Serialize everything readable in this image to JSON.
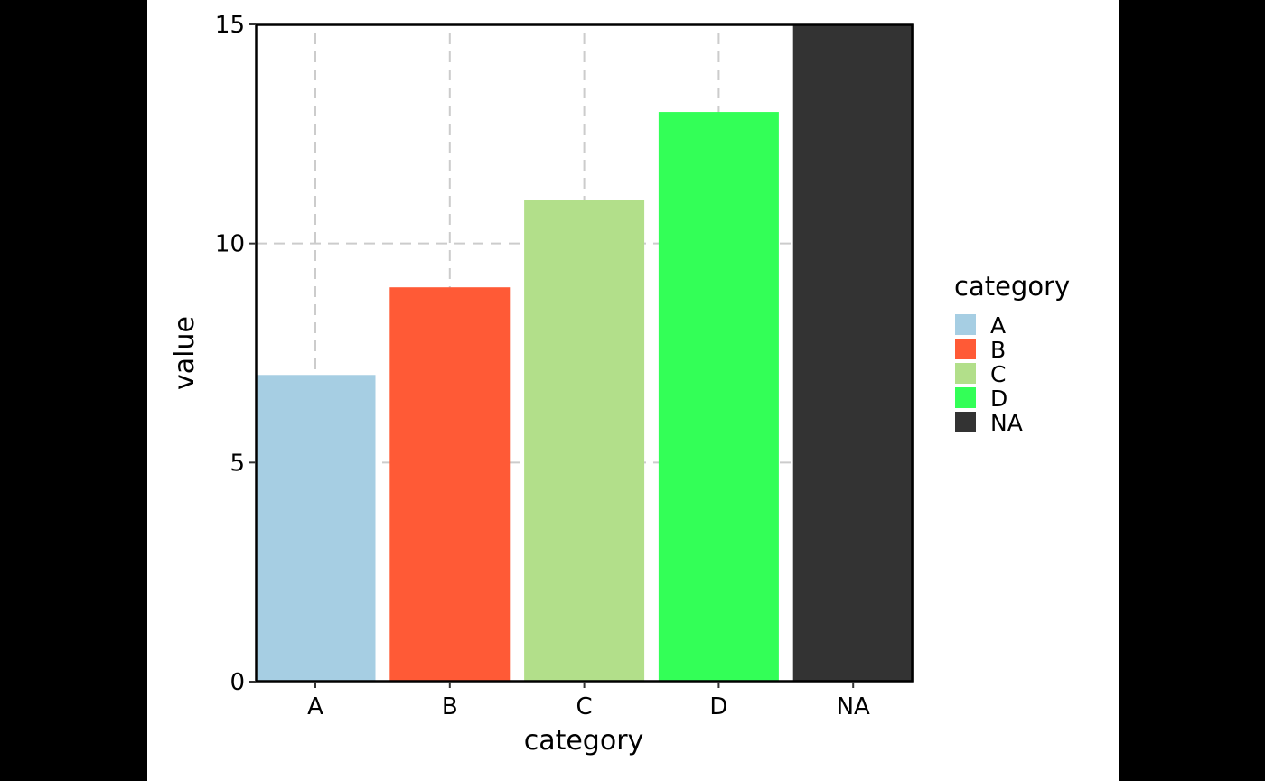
{
  "chart_data": {
    "type": "bar",
    "title": "",
    "xlabel": "category",
    "ylabel": "value",
    "categories": [
      "A",
      "B",
      "C",
      "D",
      "NA"
    ],
    "values": [
      7,
      9,
      11,
      13,
      15
    ],
    "colors": [
      "#A6CEE3",
      "#FF5A36",
      "#B2DF8A",
      "#33FF57",
      "#333333"
    ],
    "ylim": [
      0,
      15
    ],
    "yticks": [
      0,
      5,
      10,
      15
    ],
    "grid": {
      "on": true,
      "style": "dashed",
      "color": "#CCCCCC"
    },
    "legend": {
      "title": "category",
      "position": "right",
      "entries": [
        {
          "label": "A",
          "color": "#A6CEE3"
        },
        {
          "label": "B",
          "color": "#FF5A36"
        },
        {
          "label": "C",
          "color": "#B2DF8A"
        },
        {
          "label": "D",
          "color": "#33FF57"
        },
        {
          "label": "NA",
          "color": "#333333"
        }
      ]
    }
  }
}
